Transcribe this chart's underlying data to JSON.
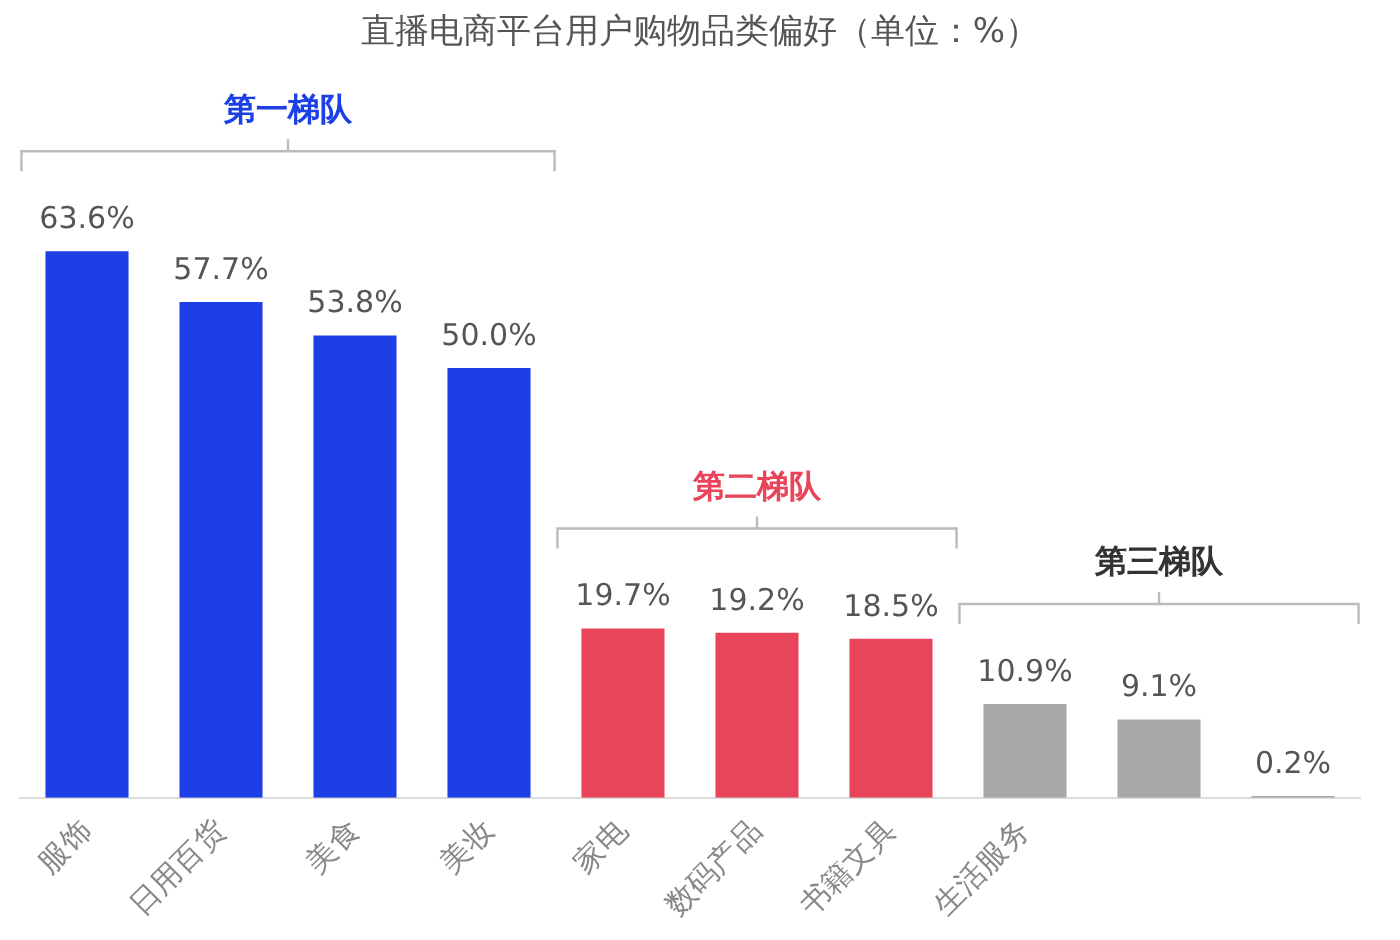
{
  "chart_data": {
    "type": "bar",
    "title": "直播电商平台用户购物品类偏好（单位：%）",
    "categories": [
      "服饰",
      "日用百货",
      "美食",
      "美妆",
      "家电",
      "数码产品",
      "书籍文具",
      "生活服务",
      null,
      null
    ],
    "values": [
      63.6,
      57.7,
      53.8,
      50.0,
      19.7,
      19.2,
      18.5,
      10.9,
      9.1,
      0.2
    ],
    "value_labels": [
      "63.6%",
      "57.7%",
      "53.8%",
      "50.0%",
      "19.7%",
      "19.2%",
      "18.5%",
      "10.9%",
      "9.1%",
      "0.2%"
    ],
    "colors": [
      "#1d3fe6",
      "#1d3fe6",
      "#1d3fe6",
      "#1d3fe6",
      "#e8455a",
      "#e8455a",
      "#e8455a",
      "#a8a8a8",
      "#a8a8a8",
      "#a8a8a8"
    ],
    "annotations": [
      "第一梯队",
      "第二梯队",
      "第三梯队"
    ],
    "grid": false,
    "legend": false
  }
}
